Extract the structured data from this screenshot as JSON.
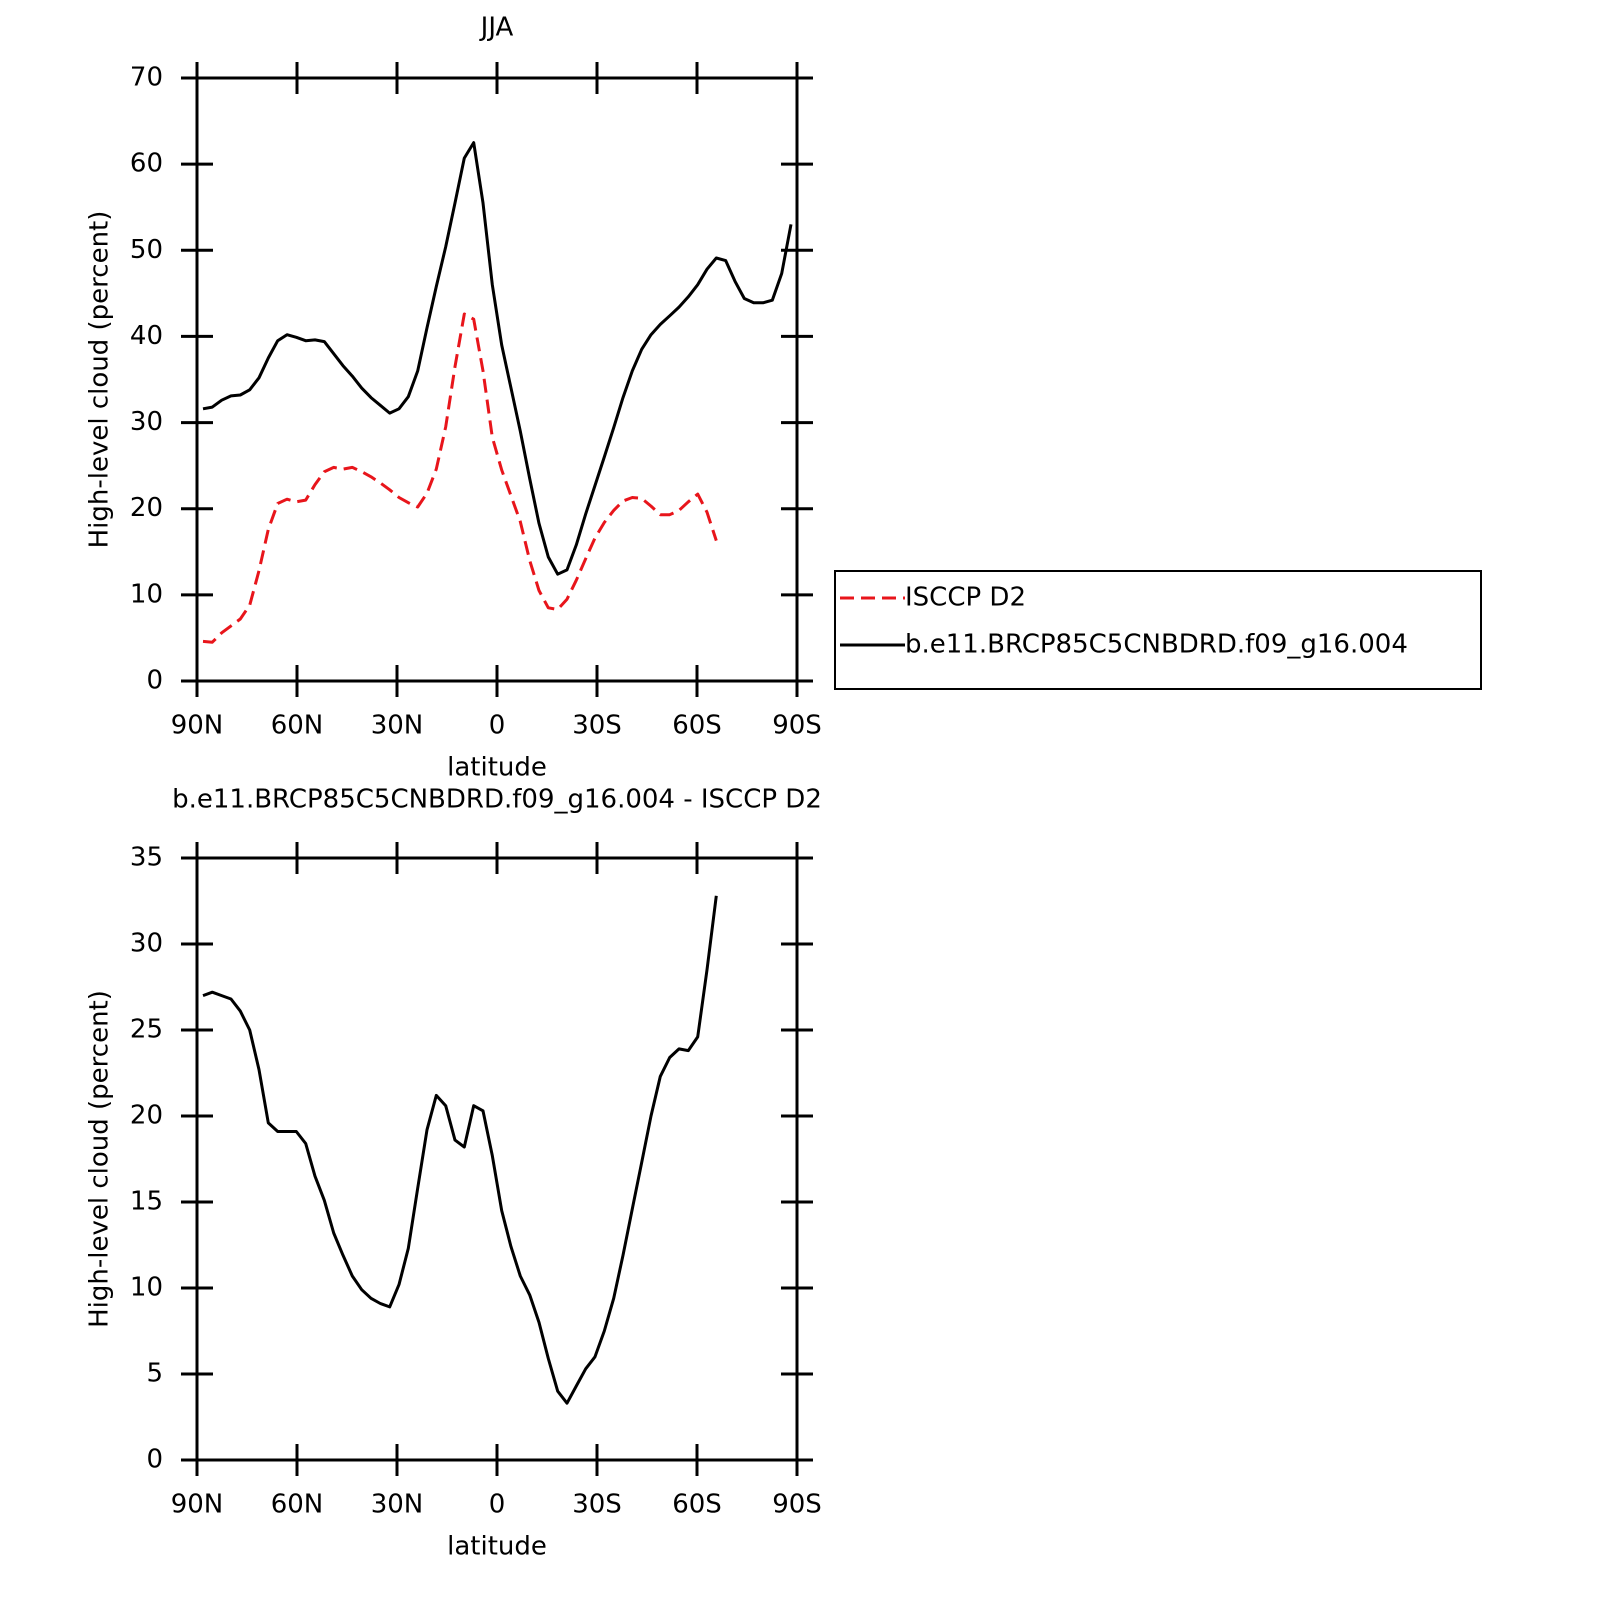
{
  "chart_data": [
    {
      "type": "line",
      "title": "JJA",
      "xlabel": "latitude",
      "ylabel": "High-level cloud (percent)",
      "x": [
        88.2,
        85.4,
        82.6,
        79.8,
        77,
        74.2,
        71.4,
        68.6,
        65.8,
        63,
        60.2,
        57.4,
        54.6,
        51.8,
        49,
        46.2,
        43.4,
        40.6,
        37.8,
        35,
        32.2,
        29.4,
        26.6,
        23.8,
        21,
        18.2,
        15.4,
        12.6,
        9.8,
        7,
        4.2,
        1.4,
        -1.4,
        -4.2,
        -7,
        -9.8,
        -12.6,
        -15.4,
        -18.2,
        -21,
        -23.8,
        -26.6,
        -29.4,
        -32.2,
        -35,
        -37.8,
        -40.6,
        -43.4,
        -46.2,
        -49,
        -51.8,
        -54.6,
        -57.4,
        -60.2,
        -63,
        -65.8,
        -68.6,
        -71.4,
        -74.2,
        -77,
        -79.8,
        -82.6,
        -85.4,
        -88.2
      ],
      "series": [
        {
          "name": "ISCCP D2",
          "color": "#e8151b",
          "dashed": true,
          "values": [
            4.6,
            4.5,
            5.6,
            6.4,
            7.2,
            8.8,
            12.8,
            17.6,
            20.6,
            21.1,
            20.8,
            21.0,
            22.8,
            24.3,
            24.8,
            24.6,
            24.8,
            24.3,
            23.7,
            23.0,
            22.2,
            21.3,
            20.7,
            20.2,
            21.8,
            24.6,
            29.5,
            36.5,
            42.6,
            42.0,
            36.0,
            28.3,
            24.5,
            21.5,
            18.5,
            14.0,
            10.5,
            8.5,
            8.3,
            9.5,
            11.7,
            14.2,
            16.6,
            18.4,
            19.8,
            20.9,
            21.3,
            21.2,
            20.3,
            19.3,
            19.3,
            19.8,
            20.8,
            21.7,
            19.6,
            16.3,
            null,
            null,
            null,
            null,
            null,
            null,
            null,
            null
          ]
        },
        {
          "name": "b.e11.BRCP85C5CNBDRD.f09_g16.004",
          "color": "#000000",
          "dashed": false,
          "values": [
            31.6,
            31.8,
            32.6,
            33.1,
            33.2,
            33.8,
            35.2,
            37.5,
            39.5,
            40.2,
            39.9,
            39.5,
            39.6,
            39.4,
            38.0,
            36.6,
            35.4,
            34.0,
            32.9,
            32.0,
            31.1,
            31.6,
            33.0,
            36.0,
            41.0,
            45.8,
            50.4,
            55.5,
            60.7,
            62.5,
            55.5,
            46.0,
            39.0,
            34.0,
            29.0,
            23.5,
            18.3,
            14.4,
            12.4,
            12.9,
            15.8,
            19.4,
            22.7,
            26.0,
            29.4,
            32.9,
            36.0,
            38.5,
            40.2,
            41.4,
            42.4,
            43.4,
            44.6,
            46.0,
            47.8,
            49.1,
            48.8,
            46.4,
            44.4,
            43.9,
            43.9,
            44.2,
            47.3,
            53.0
          ]
        }
      ],
      "xlim": [
        90,
        -90
      ],
      "ylim": [
        0,
        70
      ],
      "xticks": [
        {
          "value": 90,
          "label": "90N"
        },
        {
          "value": 60,
          "label": "60N"
        },
        {
          "value": 30,
          "label": "30N"
        },
        0,
        {
          "value": -30,
          "label": "30S"
        },
        {
          "value": -60,
          "label": "60S"
        },
        {
          "value": -90,
          "label": "90S"
        }
      ],
      "yticks": [
        0,
        10,
        20,
        30,
        40,
        50,
        60,
        70
      ],
      "legend": "right"
    },
    {
      "type": "line",
      "title": "b.e11.BRCP85C5CNBDRD.f09_g16.004 - ISCCP D2",
      "xlabel": "latitude",
      "ylabel": "High-level cloud (percent)",
      "x": [
        88.2,
        85.4,
        82.6,
        79.8,
        77,
        74.2,
        71.4,
        68.6,
        65.8,
        63,
        60.2,
        57.4,
        54.6,
        51.8,
        49,
        46.2,
        43.4,
        40.6,
        37.8,
        35,
        32.2,
        29.4,
        26.6,
        23.8,
        21,
        18.2,
        15.4,
        12.6,
        9.8,
        7,
        4.2,
        1.4,
        -1.4,
        -4.2,
        -7,
        -9.8,
        -12.6,
        -15.4,
        -18.2,
        -21,
        -23.8,
        -26.6,
        -29.4,
        -32.2,
        -35,
        -37.8,
        -40.6,
        -43.4,
        -46.2,
        -49,
        -51.8,
        -54.6,
        -57.4,
        -60.2,
        -63,
        -65.8,
        -68.6,
        -71.4,
        -74.2,
        -77,
        -79.8,
        -82.6,
        -85.4,
        -88.2
      ],
      "series": [
        {
          "color": "#000000",
          "dashed": false,
          "values": [
            27.0,
            27.2,
            27.0,
            26.8,
            26.1,
            25.0,
            22.7,
            19.6,
            19.1,
            19.1,
            19.1,
            18.4,
            16.5,
            15.1,
            13.2,
            11.9,
            10.7,
            9.9,
            9.4,
            9.1,
            8.9,
            10.2,
            12.3,
            15.8,
            19.2,
            21.2,
            20.6,
            18.6,
            18.2,
            20.6,
            20.3,
            17.7,
            14.5,
            12.4,
            10.7,
            9.6,
            8.0,
            5.9,
            4.0,
            3.3,
            4.3,
            5.3,
            6.0,
            7.5,
            9.4,
            11.9,
            14.6,
            17.3,
            20.0,
            22.3,
            23.4,
            23.9,
            23.8,
            24.6,
            28.5,
            32.8,
            null,
            null,
            null,
            null,
            null,
            null,
            null,
            null
          ]
        }
      ],
      "xlim": [
        90,
        -90
      ],
      "ylim": [
        0,
        35
      ],
      "xticks": [
        {
          "value": 90,
          "label": "90N"
        },
        {
          "value": 60,
          "label": "60N"
        },
        {
          "value": 30,
          "label": "30N"
        },
        0,
        {
          "value": -30,
          "label": "30S"
        },
        {
          "value": -60,
          "label": "60S"
        },
        {
          "value": -90,
          "label": "90S"
        }
      ],
      "yticks": [
        0,
        5,
        10,
        15,
        20,
        25,
        30,
        35
      ]
    }
  ]
}
